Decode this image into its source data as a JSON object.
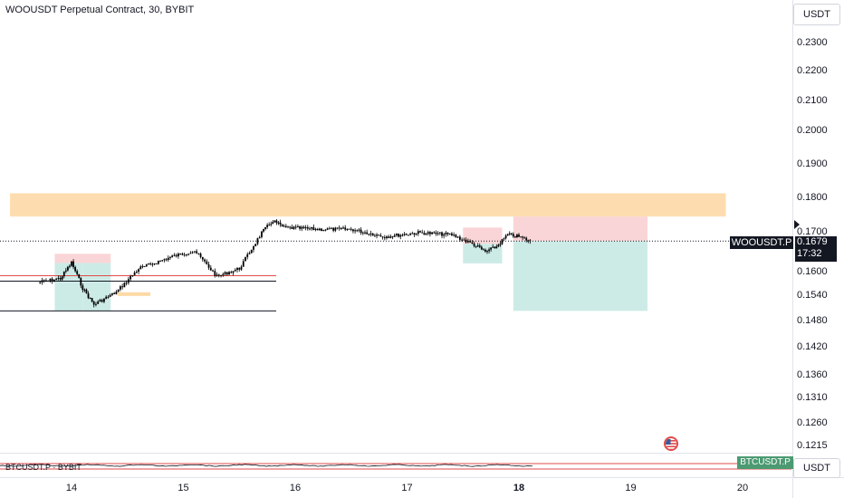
{
  "chart_title": "WOOUSDT Perpetual Contract, 30, BYBIT",
  "currency_top": "USDT",
  "currency_bottom": "USDT",
  "price_ticks": [
    "0.2300",
    "0.2200",
    "0.2100",
    "0.2000",
    "0.1900",
    "0.1800",
    "0.1700",
    "0.1600",
    "0.1540",
    "0.1480",
    "0.1420",
    "0.1360",
    "0.1310",
    "0.1260",
    "0.1215"
  ],
  "date_ticks": [
    "14",
    "15",
    "16",
    "17",
    "18",
    "19",
    "20"
  ],
  "symbol_label": "WOOUSDT.P",
  "last_price": "0.1679",
  "countdown": "17:32",
  "sub_chart_title": "BTCUSDT.P · BYBIT",
  "btc_badge": "BTCUSDT.P",
  "colors": {
    "supply_zone": "#fdd9a6",
    "stop_zone": "#f9d0d3",
    "target_zone": "#c7e9e4",
    "candle": "#000000",
    "pane_line": "#e14b4b",
    "btc_badge": "#4c9a72"
  },
  "icons": {
    "flag": "us-flag-icon"
  },
  "chart_data": {
    "type": "line",
    "symbol": "WOOUSDT.P",
    "timeframe": "30",
    "exchange": "BYBIT",
    "x": [
      "13.7",
      "13.9",
      "14.0",
      "14.1",
      "14.2",
      "14.4",
      "14.6",
      "14.9",
      "15.1",
      "15.3",
      "15.5",
      "15.7",
      "15.8",
      "15.9",
      "16.2",
      "16.5",
      "16.8",
      "17.1",
      "17.4",
      "17.6",
      "17.7",
      "17.8",
      "17.9",
      "18.0",
      "18.1"
    ],
    "y": [
      0.1575,
      0.1585,
      0.1625,
      0.156,
      0.152,
      0.155,
      0.161,
      0.164,
      0.1655,
      0.159,
      0.161,
      0.17,
      0.1735,
      0.1715,
      0.171,
      0.171,
      0.169,
      0.17,
      0.1695,
      0.167,
      0.1652,
      0.1665,
      0.1695,
      0.169,
      0.1679
    ],
    "ylim": [
      0.12,
      0.235
    ],
    "xlim": [
      13.45,
      20.5
    ],
    "last_value": 0.1679,
    "zones": [
      {
        "kind": "supply",
        "y": [
          0.1747,
          0.1815
        ],
        "x": [
          13.45,
          19.85
        ]
      },
      {
        "kind": "stop",
        "y": [
          0.1624,
          0.1647
        ],
        "x": [
          13.85,
          14.35
        ]
      },
      {
        "kind": "target",
        "y": [
          0.1505,
          0.1624
        ],
        "x": [
          13.85,
          14.1
        ]
      },
      {
        "kind": "target",
        "y": [
          0.1505,
          0.1624
        ],
        "x": [
          14.1,
          14.35
        ]
      },
      {
        "kind": "stop",
        "y": [
          0.1672,
          0.1715
        ],
        "x": [
          17.5,
          17.85
        ]
      },
      {
        "kind": "target",
        "y": [
          0.1623,
          0.1672
        ],
        "x": [
          17.5,
          17.85
        ]
      },
      {
        "kind": "stop",
        "y": [
          0.1679,
          0.1747
        ],
        "x": [
          17.95,
          19.15
        ]
      },
      {
        "kind": "target",
        "y": [
          0.1505,
          0.1679
        ],
        "x": [
          17.95,
          19.15
        ]
      }
    ]
  }
}
